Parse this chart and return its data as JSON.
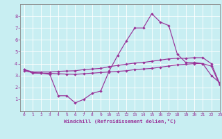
{
  "xlabel": "Windchill (Refroidissement éolien,°C)",
  "bg_color": "#c8eef2",
  "line_color": "#993399",
  "grid_color": "#ffffff",
  "spine_color": "#888888",
  "xlim": [
    -0.5,
    23
  ],
  "ylim": [
    0,
    9
  ],
  "xticks": [
    0,
    1,
    2,
    3,
    4,
    5,
    6,
    7,
    8,
    9,
    10,
    11,
    12,
    13,
    14,
    15,
    16,
    17,
    18,
    19,
    20,
    21,
    22,
    23
  ],
  "yticks": [
    1,
    2,
    3,
    4,
    5,
    6,
    7,
    8
  ],
  "line1_x": [
    0,
    1,
    2,
    3,
    4,
    5,
    6,
    7,
    8,
    9,
    10,
    11,
    12,
    13,
    14,
    15,
    16,
    17,
    18,
    19,
    20,
    21,
    22,
    23
  ],
  "line1_y": [
    3.5,
    3.2,
    3.2,
    3.1,
    1.3,
    1.3,
    0.7,
    1.0,
    1.5,
    1.7,
    3.4,
    4.7,
    5.9,
    7.0,
    7.0,
    8.2,
    7.5,
    7.2,
    4.8,
    4.1,
    4.1,
    4.0,
    3.0,
    2.4
  ],
  "line2_x": [
    0,
    1,
    2,
    3,
    4,
    5,
    6,
    7,
    8,
    9,
    10,
    11,
    12,
    13,
    14,
    15,
    16,
    17,
    18,
    19,
    20,
    21,
    22,
    23
  ],
  "line2_y": [
    3.5,
    3.3,
    3.3,
    3.3,
    3.35,
    3.38,
    3.4,
    3.5,
    3.55,
    3.6,
    3.75,
    3.85,
    3.95,
    4.05,
    4.1,
    4.2,
    4.3,
    4.4,
    4.45,
    4.45,
    4.5,
    4.5,
    4.0,
    2.3
  ],
  "line3_x": [
    0,
    1,
    2,
    3,
    4,
    5,
    6,
    7,
    8,
    9,
    10,
    11,
    12,
    13,
    14,
    15,
    16,
    17,
    18,
    19,
    20,
    21,
    22,
    23
  ],
  "line3_y": [
    3.4,
    3.25,
    3.2,
    3.18,
    3.15,
    3.12,
    3.1,
    3.15,
    3.2,
    3.25,
    3.3,
    3.35,
    3.4,
    3.5,
    3.55,
    3.6,
    3.7,
    3.8,
    3.9,
    3.95,
    4.0,
    4.0,
    3.8,
    2.2
  ]
}
